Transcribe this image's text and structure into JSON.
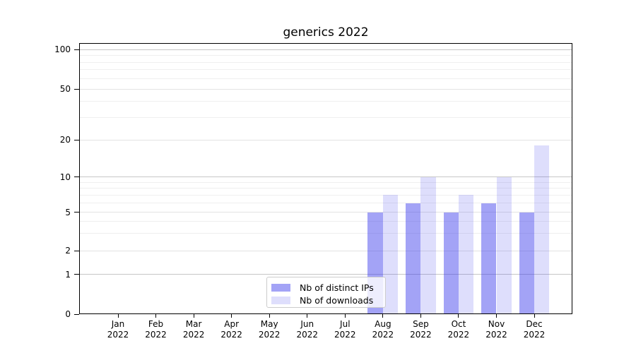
{
  "chart_data": {
    "type": "bar",
    "title": "generics 2022",
    "categories": [
      {
        "month": "Jan",
        "year": "2022"
      },
      {
        "month": "Feb",
        "year": "2022"
      },
      {
        "month": "Mar",
        "year": "2022"
      },
      {
        "month": "Apr",
        "year": "2022"
      },
      {
        "month": "May",
        "year": "2022"
      },
      {
        "month": "Jun",
        "year": "2022"
      },
      {
        "month": "Jul",
        "year": "2022"
      },
      {
        "month": "Aug",
        "year": "2022"
      },
      {
        "month": "Sep",
        "year": "2022"
      },
      {
        "month": "Oct",
        "year": "2022"
      },
      {
        "month": "Nov",
        "year": "2022"
      },
      {
        "month": "Dec",
        "year": "2022"
      }
    ],
    "series": [
      {
        "name": "Nb of distinct IPs",
        "values": [
          0,
          0,
          0,
          0,
          0,
          0,
          0,
          5,
          6,
          5,
          6,
          5
        ],
        "fill_rgba": "rgba(50,50,235,0.45)",
        "approx_hex_on_white": "#a5a5f6"
      },
      {
        "name": "Nb of downloads",
        "values": [
          0,
          0,
          0,
          0,
          0,
          0,
          0,
          7,
          10,
          7,
          10,
          18
        ],
        "fill_rgba": "rgba(50,50,235,0.16)",
        "approx_hex_on_white": "#dedefa"
      }
    ],
    "y_axis": {
      "scale": "log-like (0 baseline with logarithmic spacing above 1)",
      "tick_labels": [
        "0",
        "1",
        "2",
        "5",
        "10",
        "20",
        "50",
        "100"
      ],
      "tick_values": [
        0,
        1,
        2,
        5,
        10,
        20,
        50,
        100
      ],
      "major_gridlines": [
        1,
        10,
        100
      ],
      "labeled_minor_gridlines": [
        2,
        5,
        20,
        50
      ],
      "unlabeled_minor_gridlines": [
        3,
        4,
        6,
        7,
        8,
        9,
        30,
        40,
        60,
        70,
        80,
        90
      ],
      "ylim": [
        0,
        113
      ]
    },
    "grid": true,
    "legend_position": "lower center inside plot",
    "colors": {
      "major_grid": "#c6c6c6",
      "minor_grid": "#efefef",
      "spine": "#000000",
      "text": "#000000"
    }
  }
}
